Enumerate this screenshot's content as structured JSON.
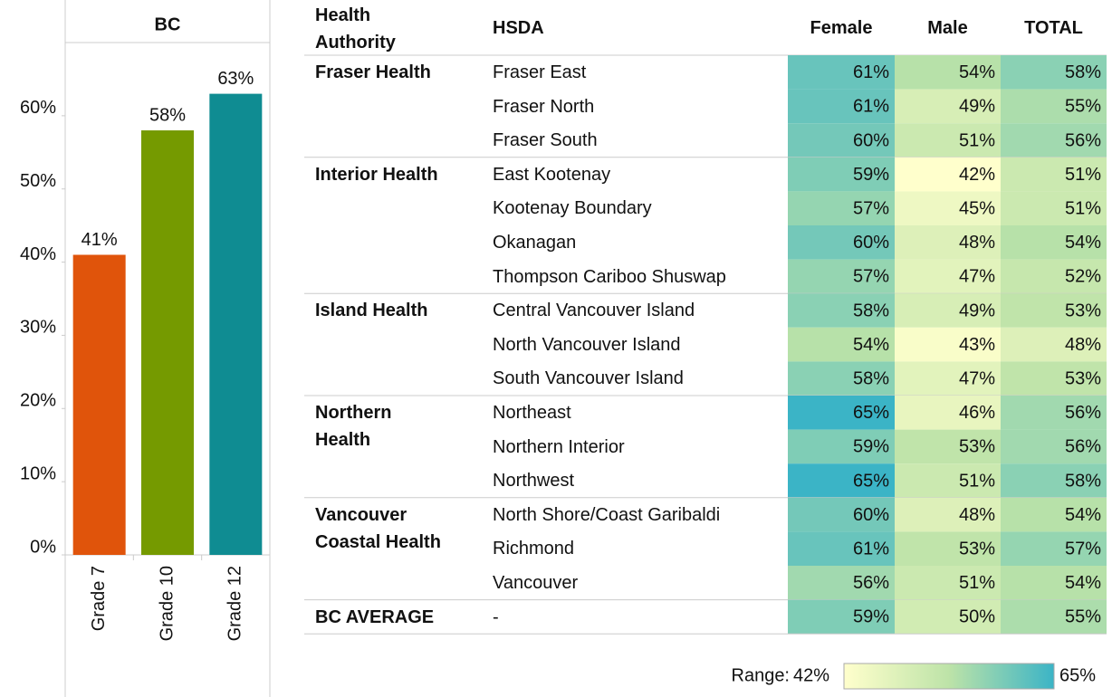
{
  "chart_data": {
    "type": "bar",
    "title": "BC",
    "categories": [
      "Grade 7",
      "Grade 10",
      "Grade 12"
    ],
    "values": [
      41,
      58,
      63
    ],
    "value_labels": [
      "41%",
      "58%",
      "63%"
    ],
    "colors": [
      "#e0540b",
      "#759a00",
      "#0f8c92"
    ],
    "ylim": [
      0,
      70
    ],
    "yticks": [
      {
        "value": 0,
        "label": "0%"
      },
      {
        "value": 10,
        "label": "10%"
      },
      {
        "value": 20,
        "label": "20%"
      },
      {
        "value": 30,
        "label": "30%"
      },
      {
        "value": 40,
        "label": "40%"
      },
      {
        "value": 50,
        "label": "50%"
      },
      {
        "value": 60,
        "label": "60%"
      }
    ],
    "grid": false
  },
  "table": {
    "columns": [
      "Health Authority",
      "HSDA",
      "Female",
      "Male",
      "TOTAL"
    ],
    "groups": [
      {
        "authority": "Fraser Health",
        "rows": [
          {
            "hsda": "Fraser East",
            "values": [
              {
                "value": 61,
                "label": "61%"
              },
              {
                "value": 54,
                "label": "54%"
              },
              {
                "value": 58,
                "label": "58%"
              }
            ]
          },
          {
            "hsda": "Fraser North",
            "values": [
              {
                "value": 61,
                "label": "61%"
              },
              {
                "value": 49,
                "label": "49%"
              },
              {
                "value": 55,
                "label": "55%"
              }
            ]
          },
          {
            "hsda": "Fraser South",
            "values": [
              {
                "value": 60,
                "label": "60%"
              },
              {
                "value": 51,
                "label": "51%"
              },
              {
                "value": 56,
                "label": "56%"
              }
            ]
          }
        ]
      },
      {
        "authority": "Interior Health",
        "rows": [
          {
            "hsda": "East Kootenay",
            "values": [
              {
                "value": 59,
                "label": "59%"
              },
              {
                "value": 42,
                "label": "42%"
              },
              {
                "value": 51,
                "label": "51%"
              }
            ]
          },
          {
            "hsda": "Kootenay Boundary",
            "values": [
              {
                "value": 57,
                "label": "57%"
              },
              {
                "value": 45,
                "label": "45%"
              },
              {
                "value": 51,
                "label": "51%"
              }
            ]
          },
          {
            "hsda": "Okanagan",
            "values": [
              {
                "value": 60,
                "label": "60%"
              },
              {
                "value": 48,
                "label": "48%"
              },
              {
                "value": 54,
                "label": "54%"
              }
            ]
          },
          {
            "hsda": "Thompson Cariboo Shuswap",
            "values": [
              {
                "value": 57,
                "label": "57%"
              },
              {
                "value": 47,
                "label": "47%"
              },
              {
                "value": 52,
                "label": "52%"
              }
            ]
          }
        ]
      },
      {
        "authority": "Island Health",
        "rows": [
          {
            "hsda": "Central Vancouver Island",
            "values": [
              {
                "value": 58,
                "label": "58%"
              },
              {
                "value": 49,
                "label": "49%"
              },
              {
                "value": 53,
                "label": "53%"
              }
            ]
          },
          {
            "hsda": "North Vancouver Island",
            "values": [
              {
                "value": 54,
                "label": "54%"
              },
              {
                "value": 43,
                "label": "43%"
              },
              {
                "value": 48,
                "label": "48%"
              }
            ]
          },
          {
            "hsda": "South Vancouver Island",
            "values": [
              {
                "value": 58,
                "label": "58%"
              },
              {
                "value": 47,
                "label": "47%"
              },
              {
                "value": 53,
                "label": "53%"
              }
            ]
          }
        ]
      },
      {
        "authority": "Northern Health",
        "rows": [
          {
            "hsda": "Northeast",
            "values": [
              {
                "value": 65,
                "label": "65%"
              },
              {
                "value": 46,
                "label": "46%"
              },
              {
                "value": 56,
                "label": "56%"
              }
            ]
          },
          {
            "hsda": "Northern Interior",
            "values": [
              {
                "value": 59,
                "label": "59%"
              },
              {
                "value": 53,
                "label": "53%"
              },
              {
                "value": 56,
                "label": "56%"
              }
            ]
          },
          {
            "hsda": "Northwest",
            "values": [
              {
                "value": 65,
                "label": "65%"
              },
              {
                "value": 51,
                "label": "51%"
              },
              {
                "value": 58,
                "label": "58%"
              }
            ]
          }
        ]
      },
      {
        "authority": "Vancouver Coastal Health",
        "rows": [
          {
            "hsda": "North Shore/Coast Garibaldi",
            "values": [
              {
                "value": 60,
                "label": "60%"
              },
              {
                "value": 48,
                "label": "48%"
              },
              {
                "value": 54,
                "label": "54%"
              }
            ]
          },
          {
            "hsda": "Richmond",
            "values": [
              {
                "value": 61,
                "label": "61%"
              },
              {
                "value": 53,
                "label": "53%"
              },
              {
                "value": 57,
                "label": "57%"
              }
            ]
          },
          {
            "hsda": "Vancouver",
            "values": [
              {
                "value": 56,
                "label": "56%"
              },
              {
                "value": 51,
                "label": "51%"
              },
              {
                "value": 54,
                "label": "54%"
              }
            ]
          }
        ]
      },
      {
        "authority": "BC AVERAGE",
        "rows": [
          {
            "hsda": "-",
            "values": [
              {
                "value": 59,
                "label": "59%"
              },
              {
                "value": 50,
                "label": "50%"
              },
              {
                "value": 55,
                "label": "55%"
              }
            ]
          }
        ]
      }
    ]
  },
  "legend": {
    "title": "Range:",
    "min": {
      "value": 42,
      "label": "42%"
    },
    "max": {
      "value": 65,
      "label": "65%"
    }
  }
}
